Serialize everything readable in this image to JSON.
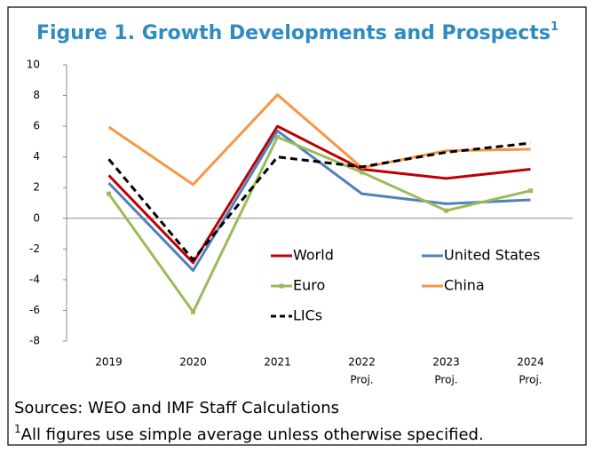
{
  "chart_data": {
    "type": "line",
    "title": "Figure 1. Growth Developments and Prospects",
    "title_superscript": "1",
    "categories": [
      "2019",
      "2020",
      "2021",
      "2022",
      "2023",
      "2024"
    ],
    "category_sublabels": [
      null,
      null,
      null,
      "Proj.",
      "Proj.",
      "Proj."
    ],
    "ylim": [
      -8,
      10
    ],
    "yticks": [
      -8,
      -6,
      -4,
      -2,
      0,
      2,
      4,
      6,
      8,
      10
    ],
    "series": [
      {
        "name": "World",
        "color": "#c00000",
        "values": [
          2.8,
          -2.9,
          6.0,
          3.2,
          2.6,
          3.2
        ]
      },
      {
        "name": "United States",
        "color": "#4f81bd",
        "values": [
          2.3,
          -3.4,
          5.7,
          1.6,
          0.95,
          1.2
        ]
      },
      {
        "name": "Euro",
        "color": "#9bbb59",
        "marker": "square",
        "values": [
          1.6,
          -6.1,
          5.3,
          3.0,
          0.5,
          1.8
        ]
      },
      {
        "name": "China",
        "color": "#f79646",
        "values": [
          5.95,
          2.2,
          8.05,
          3.3,
          4.4,
          4.5
        ]
      },
      {
        "name": "LICs",
        "color": "#000000",
        "dash": true,
        "values": [
          3.85,
          -2.7,
          4.0,
          3.35,
          4.3,
          4.9
        ]
      }
    ],
    "sources": "Sources: WEO and IMF Staff Calculations",
    "footnote_marker": "1",
    "footnote": "All figures use simple average unless otherwise specified."
  }
}
